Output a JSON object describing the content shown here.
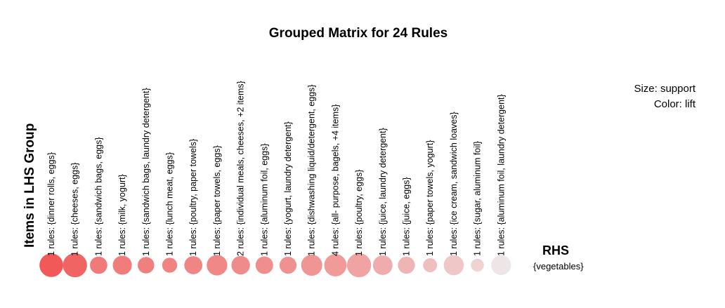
{
  "chart_data": {
    "type": "grouped-matrix",
    "title": "Grouped Matrix for 24 Rules",
    "legend": {
      "size": "Size: support",
      "color": "Color: lift"
    },
    "y_axis_title": "Items in LHS Group",
    "rhs_title": "RHS",
    "rhs_items": [
      "{vegetables}"
    ],
    "groups": [
      {
        "label": "1 rules: {dinner rolls, eggs}",
        "support": 0.6,
        "lift": 1.0
      },
      {
        "label": "1 rules: {cheeses, eggs}",
        "support": 0.62,
        "lift": 0.92
      },
      {
        "label": "1 rules: {sandwich bags, eggs}",
        "support": 0.35,
        "lift": 0.78
      },
      {
        "label": "1 rules: {milk, yogurt}",
        "support": 0.42,
        "lift": 0.76
      },
      {
        "label": "1 rules: {sandwich bags, laundry detergent}",
        "support": 0.32,
        "lift": 0.74
      },
      {
        "label": "1 rules: {lunch meat, eggs}",
        "support": 0.26,
        "lift": 0.72
      },
      {
        "label": "1 rules: {poultry, paper towels}",
        "support": 0.38,
        "lift": 0.7
      },
      {
        "label": "1 rules: {paper towels, eggs}",
        "support": 0.48,
        "lift": 0.68
      },
      {
        "label": "2 rules: {individual meals, cheeses, +2 items}",
        "support": 0.4,
        "lift": 0.66
      },
      {
        "label": "1 rules: {aluminum foil, eggs}",
        "support": 0.36,
        "lift": 0.64
      },
      {
        "label": "1 rules: {yogurt, laundry detergent}",
        "support": 0.34,
        "lift": 0.62
      },
      {
        "label": "1 rules: {dishwashing liquid/detergent, eggs}",
        "support": 0.5,
        "lift": 0.6
      },
      {
        "label": "4 rules: {all- purpose, bagels, +4 items}",
        "support": 0.55,
        "lift": 0.56
      },
      {
        "label": "1 rules: {poultry, eggs}",
        "support": 0.62,
        "lift": 0.5
      },
      {
        "label": "1 rules: {juice, laundry detergent}",
        "support": 0.44,
        "lift": 0.44
      },
      {
        "label": "1 rules: {juice, eggs}",
        "support": 0.34,
        "lift": 0.38
      },
      {
        "label": "1 rules: {paper towels, yogurt}",
        "support": 0.22,
        "lift": 0.32
      },
      {
        "label": "1 rules: {ice cream, sandwich loaves}",
        "support": 0.46,
        "lift": 0.26
      },
      {
        "label": "1 rules: {sugar, aluminum foil}",
        "support": 0.18,
        "lift": 0.18
      },
      {
        "label": "1 rules: {aluminum foil, laundry detergent}",
        "support": 0.45,
        "lift": 0.05
      }
    ],
    "colors": {
      "high_lift": "#ee3b3b",
      "low_lift": "#ebebeb"
    }
  }
}
